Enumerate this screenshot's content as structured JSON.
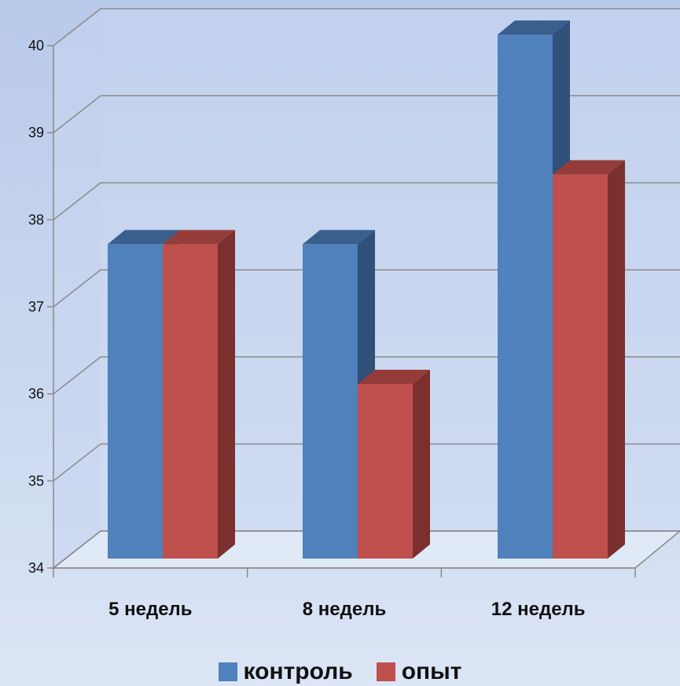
{
  "chart_data": {
    "type": "bar",
    "categories": [
      "5 недель",
      "8 недель",
      "12 недель"
    ],
    "series": [
      {
        "name": "контроль",
        "values": [
          37.6,
          37.6,
          40.0
        ],
        "color": "#4f81bd",
        "side_color": "#2e5079",
        "top_color": "#395f8f"
      },
      {
        "name": "опыт",
        "values": [
          37.6,
          36.0,
          38.4
        ],
        "color": "#c0504d",
        "side_color": "#7b2f2f",
        "top_color": "#943c3a"
      }
    ],
    "yticks": [
      34,
      35,
      36,
      37,
      38,
      39,
      40
    ],
    "ylim": [
      34,
      40
    ],
    "grid": true,
    "legend_position": "bottom",
    "title": "",
    "xlabel": "",
    "ylabel": ""
  }
}
